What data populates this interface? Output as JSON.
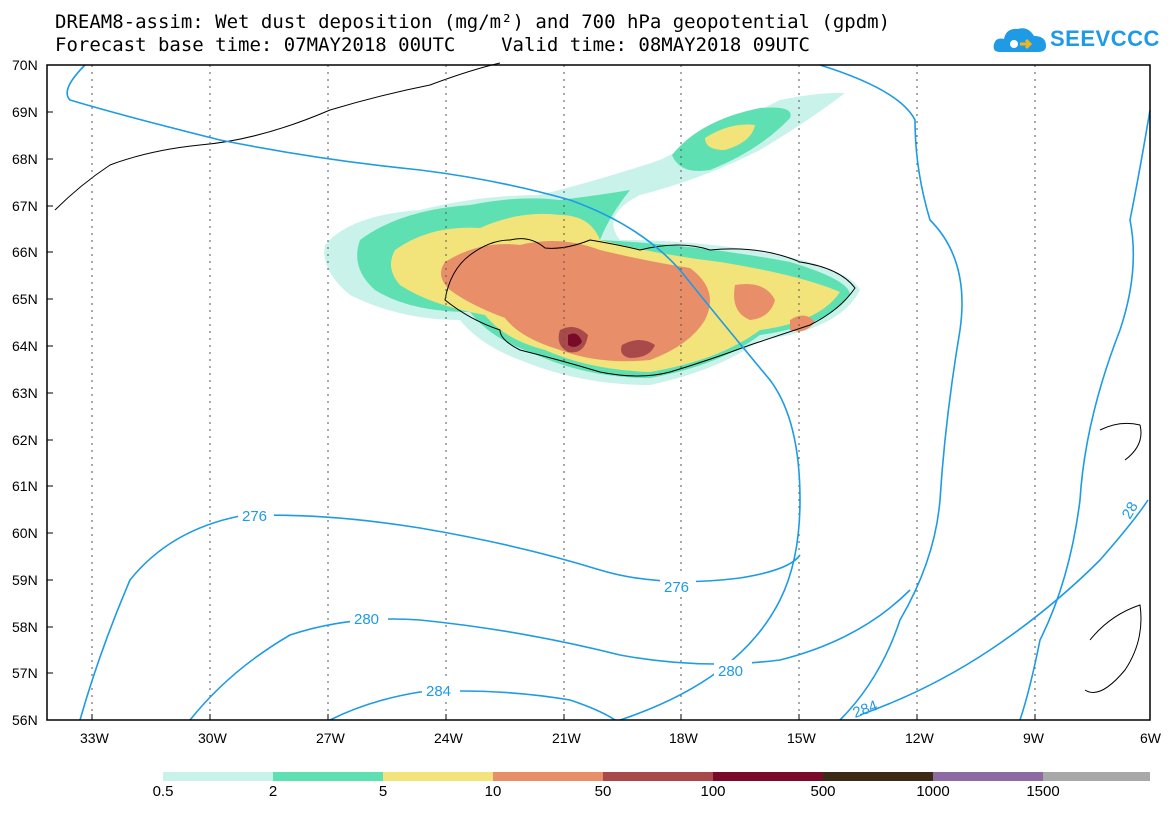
{
  "header": {
    "title_line_1": "DREAM8-assim: Wet dust deposition (mg/m²) and 700 hPa geopotential (gpdm)",
    "title_line_2": "Forecast base time: 07MAY2018 00UTC    Valid time: 08MAY2018 09UTC"
  },
  "logo": {
    "text": "SEEVCCC",
    "icon": "cloud-icon",
    "color": "#1e9be4"
  },
  "map": {
    "lat_labels": [
      "70N",
      "69N",
      "68N",
      "67N",
      "66N",
      "65N",
      "64N",
      "63N",
      "62N",
      "61N",
      "60N",
      "59N",
      "58N",
      "57N",
      "56N"
    ],
    "lon_labels": [
      "33W",
      "30W",
      "27W",
      "24W",
      "21W",
      "18W",
      "15W",
      "12W",
      "9W",
      "6W"
    ],
    "contour_color": "#1e9be4",
    "contour_labels": [
      "276",
      "276",
      "280",
      "280",
      "284",
      "284",
      "28"
    ]
  },
  "colorbar": {
    "labels": [
      "0.5",
      "2",
      "5",
      "10",
      "50",
      "100",
      "500",
      "1000",
      "1500"
    ],
    "colors": [
      "#c8f2ea",
      "#5fe0b3",
      "#f2e47a",
      "#e88f6a",
      "#a94a4a",
      "#7a0a2a",
      "#3d2a16",
      "#8e6aa3",
      "#a8a8a8"
    ]
  }
}
